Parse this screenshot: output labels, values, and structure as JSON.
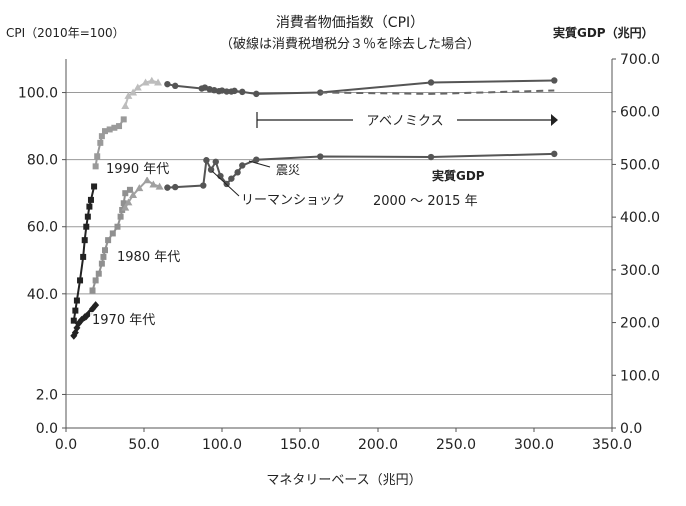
{
  "chart_data": {
    "type": "scatter",
    "title": "消費者物価指数（CPI）",
    "subtitle": "（破線は消費税増税分３％を除去した場合）",
    "xlabel": "マネタリーベース（兆円）",
    "ylabel_left": "CPI（2010年=100）",
    "ylabel_right": "実質GDP（兆円）",
    "xlim": [
      0,
      350
    ],
    "ylim_left": [
      0,
      110
    ],
    "ylim_right": [
      0,
      700
    ],
    "x_ticks": [
      "0.0",
      "50.0",
      "100.0",
      "150.0",
      "200.0",
      "250.0",
      "300.0",
      "350.0"
    ],
    "y_ticks_left": [
      "0.0",
      "2.0",
      "40.0",
      "60.0",
      "80.0",
      "100.0"
    ],
    "y_ticks_right": [
      "0.0",
      "100.0",
      "200.0",
      "300.0",
      "400.0",
      "500.0",
      "600.0",
      "700.0"
    ],
    "grid": "horizontal",
    "annotations": {
      "abenomics": "アベノミクス",
      "disaster": "震災",
      "lehman": "リーマンショック",
      "real_gdp": "実質GDP",
      "period": "2000 ～ 2015 年",
      "label_1970": "1970 年代",
      "label_1980": "1980 年代",
      "label_1990": "1990 年代"
    },
    "series": [
      {
        "axis": "left",
        "color": "#222222",
        "marker": "square",
        "points": [
          [
            5,
            32
          ],
          [
            6,
            35
          ],
          [
            7,
            38
          ],
          [
            9,
            44
          ],
          [
            11,
            51
          ],
          [
            12,
            56
          ],
          [
            13,
            60
          ],
          [
            14,
            63
          ],
          [
            15,
            66
          ],
          [
            16,
            68
          ],
          [
            18,
            72
          ]
        ]
      },
      {
        "axis": "left",
        "color": "#909090",
        "marker": "square",
        "points": [
          [
            17,
            41
          ],
          [
            19,
            44
          ],
          [
            21,
            46
          ],
          [
            23,
            49
          ],
          [
            24,
            51
          ],
          [
            25,
            53
          ],
          [
            27,
            56
          ],
          [
            30,
            58
          ],
          [
            33,
            60
          ],
          [
            35,
            63
          ],
          [
            36,
            65
          ],
          [
            37,
            67
          ],
          [
            38,
            70
          ],
          [
            41,
            71
          ]
        ]
      },
      {
        "axis": "left",
        "color": "#9a9a9a",
        "marker": "square",
        "points": [
          [
            19,
            78
          ],
          [
            20,
            81
          ],
          [
            22,
            85
          ],
          [
            23,
            87
          ],
          [
            25,
            88.5
          ],
          [
            28,
            89
          ],
          [
            31,
            89.5
          ],
          [
            34,
            90
          ],
          [
            37,
            92
          ]
        ]
      },
      {
        "axis": "left",
        "color": "#bdbdbd",
        "marker": "triangle",
        "points": [
          [
            38,
            96
          ],
          [
            40,
            99
          ],
          [
            43,
            100
          ],
          [
            46,
            101.5
          ],
          [
            51,
            103
          ],
          [
            55,
            103.5
          ],
          [
            59,
            103
          ]
        ]
      },
      {
        "axis": "left",
        "color": "#555555",
        "marker": "circle",
        "points": [
          [
            65,
            102.5
          ],
          [
            70,
            102
          ],
          [
            87,
            101.2
          ],
          [
            89,
            101.5
          ],
          [
            92,
            101
          ],
          [
            95,
            100.7
          ],
          [
            98,
            100.4
          ],
          [
            100,
            100.6
          ],
          [
            103,
            100.3
          ],
          [
            106,
            100.3
          ],
          [
            108,
            100.5
          ],
          [
            113,
            100.2
          ],
          [
            122,
            99.6
          ],
          [
            163,
            100
          ],
          [
            234,
            103
          ],
          [
            313,
            103.6
          ]
        ]
      },
      {
        "axis": "left",
        "color": "#666666",
        "marker": "circle",
        "dashed": true,
        "points": [
          [
            163,
            100
          ],
          [
            234,
            99.6
          ],
          [
            313,
            100.6
          ]
        ]
      },
      {
        "axis": "right",
        "color": "#222222",
        "marker": "diamond",
        "points": [
          [
            5,
            175
          ],
          [
            6,
            181
          ],
          [
            7,
            190
          ],
          [
            8,
            198
          ],
          [
            10,
            205
          ],
          [
            12,
            210
          ],
          [
            13,
            212
          ],
          [
            15,
            218
          ],
          [
            17,
            226
          ],
          [
            19,
            233
          ]
        ]
      },
      {
        "axis": "right",
        "color": "#a0a0a0",
        "marker": "triangle",
        "points": [
          [
            38,
            418
          ],
          [
            40,
            428
          ],
          [
            43,
            442
          ],
          [
            47,
            455
          ],
          [
            52,
            470
          ],
          [
            56,
            462
          ],
          [
            60,
            458
          ]
        ]
      },
      {
        "axis": "right",
        "color": "#555555",
        "marker": "circle",
        "points": [
          [
            65,
            456
          ],
          [
            70,
            457
          ],
          [
            88,
            460
          ],
          [
            90,
            508
          ],
          [
            93,
            490
          ],
          [
            96,
            505
          ],
          [
            99,
            478
          ],
          [
            103,
            463
          ],
          [
            106,
            473
          ],
          [
            110,
            485
          ],
          [
            113,
            498
          ],
          [
            122,
            509
          ],
          [
            163,
            515
          ],
          [
            234,
            514
          ],
          [
            313,
            520
          ]
        ]
      }
    ]
  }
}
